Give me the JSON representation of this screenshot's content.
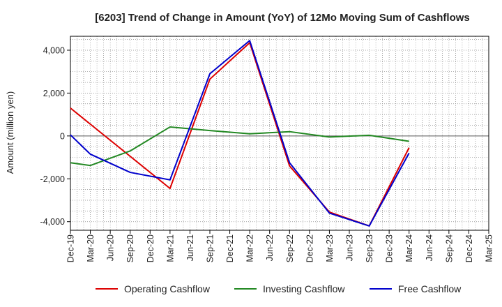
{
  "chart_data": {
    "type": "line",
    "title": "[6203]  Trend of Change in Amount (YoY) of 12Mo Moving Sum of Cashflows",
    "xlabel": "",
    "ylabel": "Amount (million yen)",
    "ylim": [
      -4400,
      4650
    ],
    "yticks": [
      4000,
      2000,
      0,
      -2000,
      -4000
    ],
    "ytick_labels": [
      "4,000",
      "2,000",
      "0",
      "-2,000",
      "-4,000"
    ],
    "grid": true,
    "legend_position": "bottom",
    "categories": [
      "Dec-19",
      "Mar-20",
      "Jun-20",
      "Sep-20",
      "Dec-20",
      "Mar-21",
      "Jun-21",
      "Sep-21",
      "Dec-21",
      "Mar-22",
      "Jun-22",
      "Sep-22",
      "Dec-22",
      "Mar-23",
      "Jun-23",
      "Sep-23",
      "Dec-23",
      "Mar-24",
      "Jun-24",
      "Sep-24",
      "Dec-24",
      "Mar-25"
    ],
    "series": [
      {
        "name": "Operating Cashflow",
        "color": "#dd0000",
        "values": [
          1300,
          null,
          null,
          null,
          null,
          -2450,
          null,
          2650,
          null,
          4350,
          null,
          -1400,
          null,
          -3550,
          null,
          -4200,
          null,
          -550,
          null,
          null,
          null,
          null
        ]
      },
      {
        "name": "Investing Cashflow",
        "color": "#228822",
        "values": [
          -1250,
          -1380,
          null,
          -700,
          null,
          420,
          null,
          250,
          null,
          100,
          null,
          200,
          null,
          -50,
          null,
          30,
          null,
          -250,
          null,
          null,
          null,
          null
        ]
      },
      {
        "name": "Free Cashflow",
        "color": "#0000cc",
        "values": [
          50,
          -850,
          null,
          -1700,
          null,
          -2050,
          null,
          2900,
          null,
          4450,
          null,
          -1250,
          null,
          -3600,
          null,
          -4200,
          null,
          -800,
          null,
          null,
          null,
          null
        ]
      }
    ]
  }
}
